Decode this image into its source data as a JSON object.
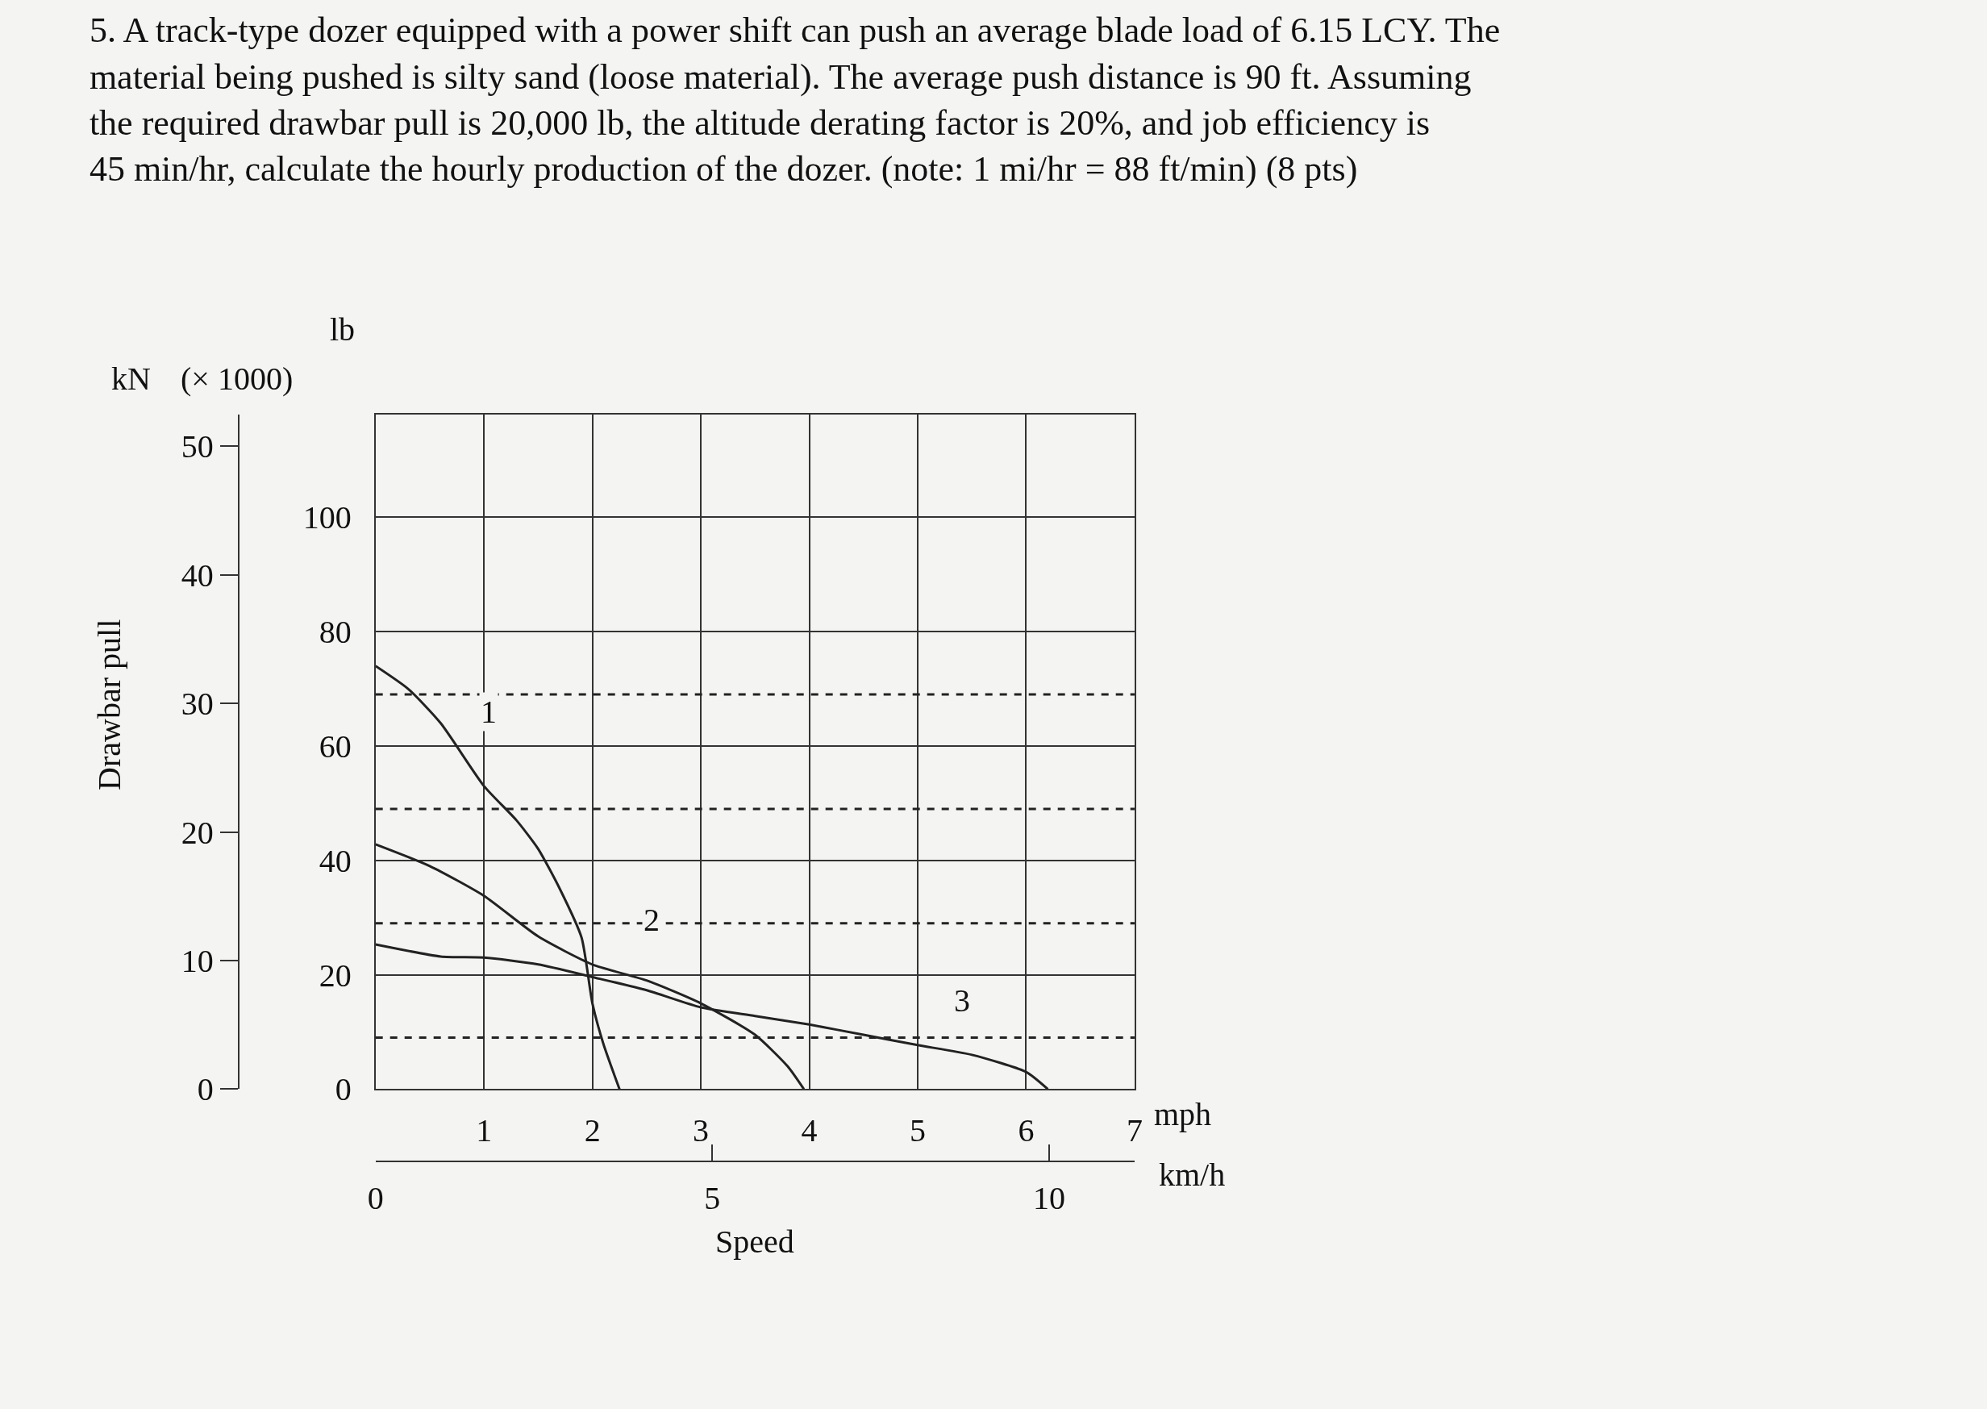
{
  "chart_data": {
    "type": "line",
    "title": "5. A track-type dozer equipped with a power shift can push an average blade load of 6.15 LCY. The material being pushed is silty sand (loose material). The average push distance is 90 ft. Assuming the required drawbar pull is 20,000 lb, the altitude derating factor is 20%, and job efficiency is 45 min/hr, calculate the hourly production of the dozer. (note: 1 mi/hr = 88 ft/min) (8 pts)",
    "xlabel": "mph",
    "x2label": "km/h",
    "y2label": "kN",
    "annotations": [
      "(× 1000)",
      "Drawbar pull",
      "Speed",
      "1",
      "2",
      "3",
      "lb"
    ],
    "series": [
      {
        "color": "#222222",
        "x": [
          0,
          0.3,
          0.6,
          1.0,
          1.3,
          1.5,
          1.7,
          1.9,
          2.0,
          2.1,
          2.25
        ],
        "values": [
          74,
          70,
          64,
          53,
          47,
          42,
          35,
          26.5,
          15,
          8,
          0
        ]
      },
      {
        "color": "#222222",
        "x": [
          0,
          0.5,
          1.0,
          1.5,
          2.0,
          2.5,
          3.0,
          3.5,
          3.8,
          3.95
        ],
        "values": [
          42.8,
          39,
          33.8,
          26.7,
          21.8,
          19,
          15,
          9.5,
          4,
          0
        ]
      },
      {
        "color": "#222222",
        "x": [
          0,
          0.6,
          1.0,
          1.5,
          2.0,
          2.5,
          3.0,
          3.5,
          4.0,
          4.5,
          5.0,
          5.5,
          6.0,
          6.2
        ],
        "values": [
          25.3,
          23.2,
          23,
          21.8,
          19.6,
          17.3,
          14.3,
          12.8,
          11.3,
          9.5,
          7.7,
          6,
          3,
          0
        ]
      }
    ],
    "ref_lines": [
      {
        "axis": "y",
        "value": 69,
        "line_style": "dashed",
        "color": "#222222"
      },
      {
        "axis": "y",
        "value": 49,
        "line_style": "dashed",
        "color": "#222222"
      },
      {
        "axis": "y",
        "value": 29,
        "line_style": "dashed",
        "color": "#222222"
      },
      {
        "axis": "y",
        "value": 9,
        "line_style": "dashed",
        "color": "#222222"
      }
    ],
    "xlim": [
      0,
      7
    ],
    "xticks": [
      1,
      2,
      3,
      4,
      5,
      6,
      7
    ],
    "ylim": [
      0,
      118
    ],
    "yticks": [
      0,
      20,
      40,
      60,
      80,
      100
    ],
    "y2lim": [
      0,
      52.5
    ],
    "y2ticks": [
      0,
      10,
      20,
      30,
      40,
      50
    ],
    "x2lim": [
      0,
      11.27
    ],
    "x2ticks": [
      0,
      5,
      10
    ],
    "grid": true,
    "marker": "none",
    "line_style": "solid"
  }
}
